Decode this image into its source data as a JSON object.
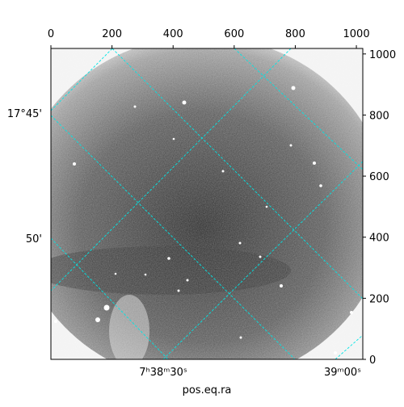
{
  "chart_data": {
    "type": "image",
    "x_label": "pos.eq.ra",
    "ra_tick_labels": [
      "7ʰ38ᵐ30ˢ",
      "39ᵐ00ˢ"
    ],
    "dec_tick_labels": [
      "17°45'",
      "50'"
    ],
    "xlim": [
      0,
      1021
    ],
    "xticks": [
      0,
      200,
      400,
      600,
      800,
      1000
    ],
    "ylim": [
      0,
      1018
    ],
    "yticks": [
      0,
      200,
      400,
      600,
      800,
      1000
    ],
    "grid_color": "#00e5e5"
  }
}
